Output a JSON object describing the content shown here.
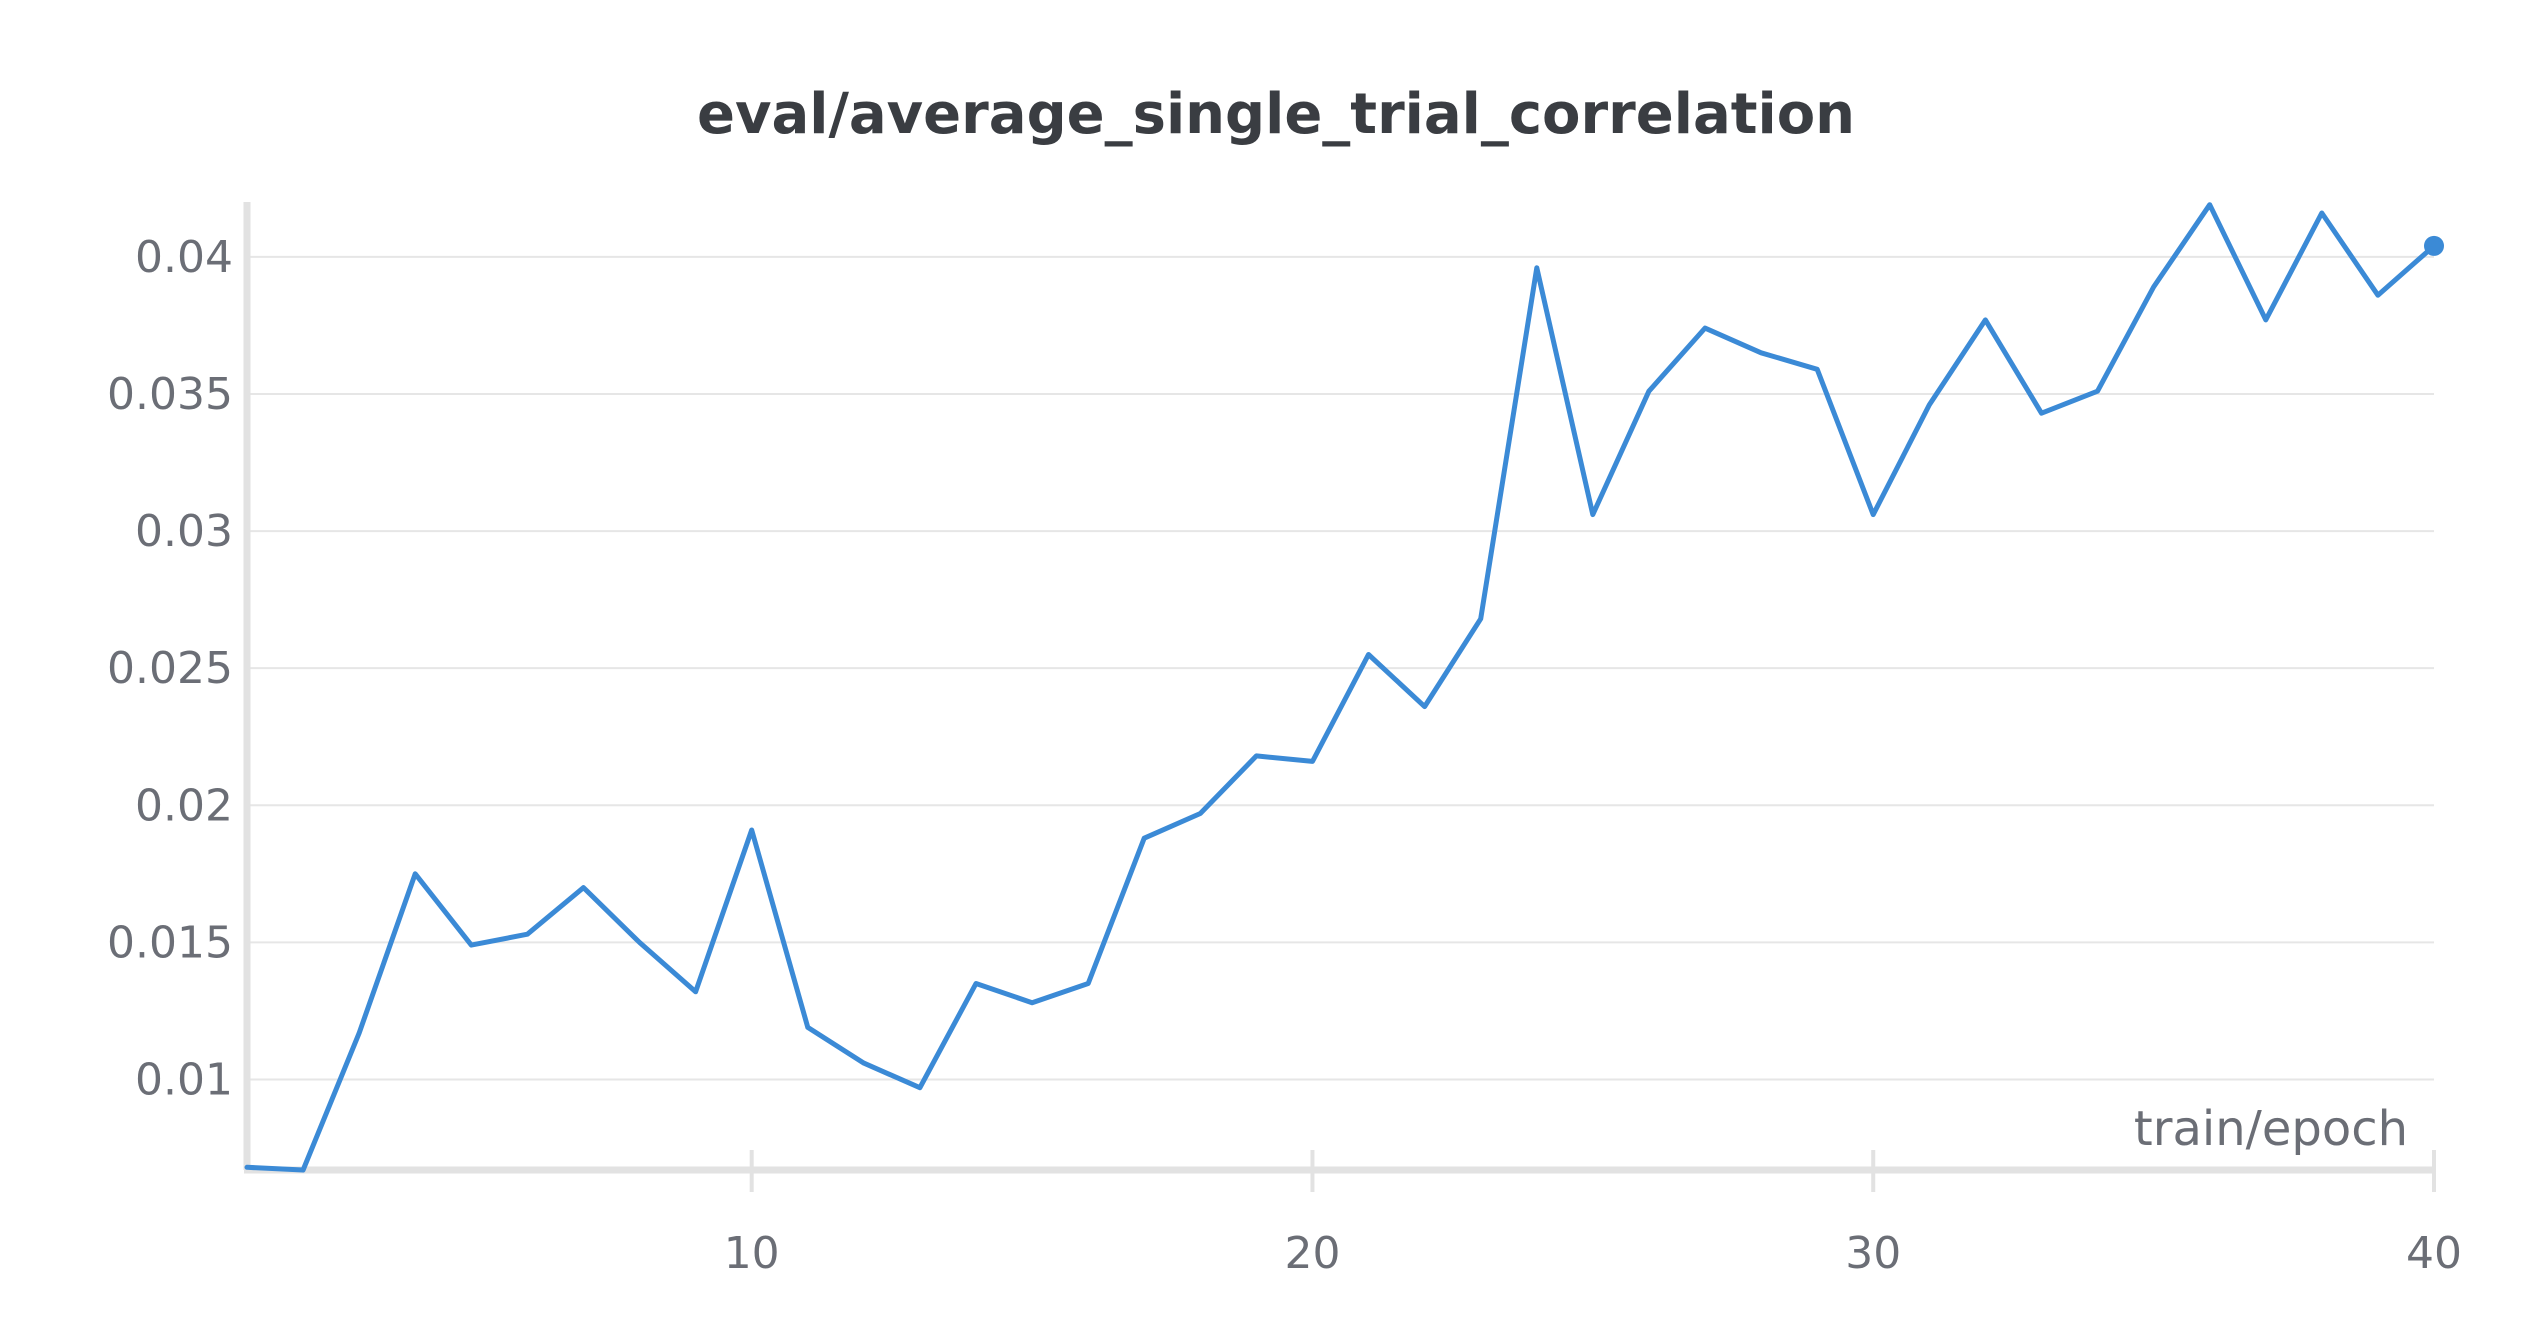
{
  "chart_data": {
    "type": "line",
    "title": "eval/average_single_trial_correlation",
    "xlabel": "train/epoch",
    "ylabel": "",
    "xlim": [
      1,
      40
    ],
    "ylim": [
      0.0067,
      0.042
    ],
    "x_ticks": [
      "10",
      "20",
      "30",
      "40"
    ],
    "y_ticks": [
      "0.01",
      "0.015",
      "0.02",
      "0.025",
      "0.03",
      "0.035",
      "0.04"
    ],
    "grid": true,
    "legend": "none",
    "series": [
      {
        "color": "#3b8ad6",
        "x": [
          1,
          2,
          3,
          4,
          5,
          6,
          7,
          8,
          9,
          10,
          11,
          12,
          13,
          14,
          15,
          16,
          17,
          18,
          19,
          20,
          21,
          22,
          23,
          24,
          25,
          26,
          27,
          28,
          29,
          30,
          31,
          32,
          33,
          34,
          35,
          36,
          37,
          38,
          39,
          40
        ],
        "y": [
          0.0068,
          0.0067,
          0.0117,
          0.0175,
          0.0149,
          0.0153,
          0.017,
          0.015,
          0.0132,
          0.0191,
          0.0119,
          0.0106,
          0.0097,
          0.0135,
          0.0128,
          0.0135,
          0.0188,
          0.0197,
          0.0218,
          0.0216,
          0.0255,
          0.0236,
          0.0268,
          0.0396,
          0.0306,
          0.0351,
          0.0374,
          0.0365,
          0.0359,
          0.0306,
          0.0346,
          0.0377,
          0.0343,
          0.0351,
          0.0389,
          0.0419,
          0.0377,
          0.0416,
          0.0386,
          0.0404
        ]
      }
    ]
  }
}
